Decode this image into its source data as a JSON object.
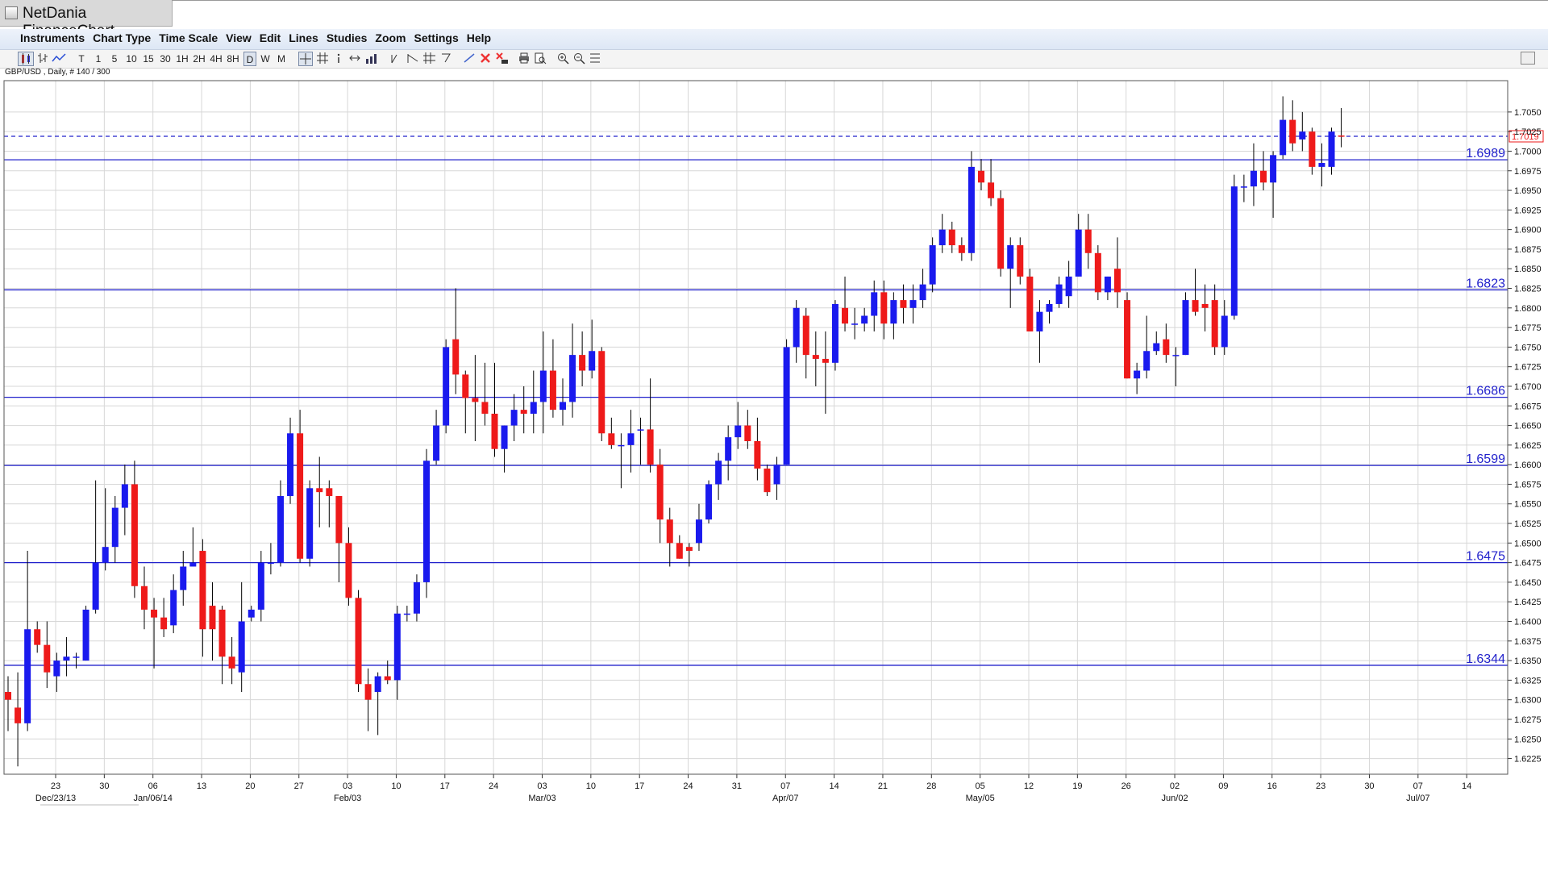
{
  "app": {
    "title": "NetDania FinanceChart"
  },
  "menu": [
    "Instruments",
    "Chart Type",
    "Time Scale",
    "View",
    "Edit",
    "Lines",
    "Studies",
    "Zoom",
    "Settings",
    "Help"
  ],
  "toolbar": {
    "timeframes": [
      "T",
      "1",
      "5",
      "10",
      "15",
      "30",
      "1H",
      "2H",
      "4H",
      "8H",
      "D",
      "W",
      "M"
    ],
    "selected_timeframe": "D"
  },
  "symbol_label": "GBP/USD , Daily, # 140 / 300",
  "colors": {
    "up": "#1a1aee",
    "down": "#ee1a1a",
    "wick": "#000000",
    "level_line": "#2222cc",
    "level_text": "#2222cc",
    "grid": "#d7d7d7",
    "last_price_line": "#2222cc",
    "last_price_box": "#ee1a1a"
  },
  "chart_data": {
    "type": "candlestick",
    "symbol": "GBP/USD",
    "interval": "Daily",
    "ylim": [
      1.6205,
      1.709
    ],
    "y_ticks": [
      1.6225,
      1.625,
      1.6275,
      1.63,
      1.6325,
      1.635,
      1.6375,
      1.64,
      1.6425,
      1.645,
      1.6475,
      1.65,
      1.6525,
      1.655,
      1.6575,
      1.66,
      1.6625,
      1.665,
      1.6675,
      1.67,
      1.6725,
      1.675,
      1.6775,
      1.68,
      1.6825,
      1.685,
      1.6875,
      1.69,
      1.6925,
      1.695,
      1.6975,
      1.7,
      1.7025,
      1.705
    ],
    "y_tick_labels": [
      "1.6225",
      "1.6250",
      "1.6275",
      "1.6300",
      "1.6325",
      "1.6350",
      "1.6375",
      "1.6400",
      "1.6425",
      "1.6450",
      "1.6475",
      "1.6500",
      "1.6525",
      "1.6550",
      "1.6575",
      "1.6600",
      "1.6625",
      "1.6650",
      "1.6675",
      "1.6700",
      "1.6725",
      "1.6750",
      "1.6775",
      "1.6800",
      "1.6825",
      "1.6850",
      "1.6875",
      "1.6900",
      "1.6925",
      "1.6950",
      "1.6975",
      "1.7000",
      "1.7025",
      "1.7050"
    ],
    "x_weeks": [
      {
        "label": "23",
        "month": "Dec/23/13"
      },
      {
        "label": "30",
        "month": ""
      },
      {
        "label": "06",
        "month": "Jan/06/14"
      },
      {
        "label": "13",
        "month": ""
      },
      {
        "label": "20",
        "month": ""
      },
      {
        "label": "27",
        "month": ""
      },
      {
        "label": "03",
        "month": "Feb/03"
      },
      {
        "label": "10",
        "month": ""
      },
      {
        "label": "17",
        "month": ""
      },
      {
        "label": "24",
        "month": ""
      },
      {
        "label": "03",
        "month": "Mar/03"
      },
      {
        "label": "10",
        "month": ""
      },
      {
        "label": "17",
        "month": ""
      },
      {
        "label": "24",
        "month": ""
      },
      {
        "label": "31",
        "month": ""
      },
      {
        "label": "07",
        "month": "Apr/07"
      },
      {
        "label": "14",
        "month": ""
      },
      {
        "label": "21",
        "month": ""
      },
      {
        "label": "28",
        "month": ""
      },
      {
        "label": "05",
        "month": "May/05"
      },
      {
        "label": "12",
        "month": ""
      },
      {
        "label": "19",
        "month": ""
      },
      {
        "label": "26",
        "month": ""
      },
      {
        "label": "02",
        "month": "Jun/02"
      },
      {
        "label": "09",
        "month": ""
      },
      {
        "label": "16",
        "month": ""
      },
      {
        "label": "23",
        "month": ""
      },
      {
        "label": "30",
        "month": ""
      },
      {
        "label": "07",
        "month": "Jul/07"
      },
      {
        "label": "14",
        "month": ""
      }
    ],
    "levels": [
      {
        "value": 1.6989,
        "label": "1.6989"
      },
      {
        "value": 1.6823,
        "label": "1.6823"
      },
      {
        "value": 1.6686,
        "label": "1.6686"
      },
      {
        "value": 1.6599,
        "label": "1.6599"
      },
      {
        "value": 1.6475,
        "label": "1.6475"
      },
      {
        "value": 1.6344,
        "label": "1.6344"
      }
    ],
    "last_price": {
      "value": 1.7019,
      "label": "1.7019"
    },
    "candles": [
      [
        1.631,
        1.633,
        1.626,
        1.63
      ],
      [
        1.629,
        1.6335,
        1.6215,
        1.627
      ],
      [
        1.627,
        1.649,
        1.626,
        1.639
      ],
      [
        1.639,
        1.64,
        1.636,
        1.637
      ],
      [
        1.637,
        1.64,
        1.6315,
        1.6335
      ],
      [
        1.633,
        1.636,
        1.631,
        1.635
      ],
      [
        1.635,
        1.638,
        1.633,
        1.6355
      ],
      [
        1.6355,
        1.636,
        1.634,
        1.6355
      ],
      [
        1.635,
        1.642,
        1.635,
        1.6415
      ],
      [
        1.6415,
        1.658,
        1.641,
        1.6475
      ],
      [
        1.6475,
        1.657,
        1.6465,
        1.6495
      ],
      [
        1.6495,
        1.656,
        1.6475,
        1.6545
      ],
      [
        1.6545,
        1.66,
        1.651,
        1.6575
      ],
      [
        1.6575,
        1.6605,
        1.643,
        1.6445
      ],
      [
        1.6445,
        1.647,
        1.639,
        1.6415
      ],
      [
        1.6415,
        1.643,
        1.634,
        1.6405
      ],
      [
        1.6405,
        1.643,
        1.638,
        1.639
      ],
      [
        1.6395,
        1.646,
        1.6385,
        1.644
      ],
      [
        1.644,
        1.649,
        1.642,
        1.647
      ],
      [
        1.647,
        1.652,
        1.647,
        1.6475
      ],
      [
        1.649,
        1.6505,
        1.6355,
        1.639
      ],
      [
        1.642,
        1.645,
        1.635,
        1.639
      ],
      [
        1.6415,
        1.642,
        1.632,
        1.6355
      ],
      [
        1.6355,
        1.638,
        1.632,
        1.634
      ],
      [
        1.6335,
        1.645,
        1.631,
        1.64
      ],
      [
        1.6405,
        1.642,
        1.64,
        1.6415
      ],
      [
        1.6415,
        1.649,
        1.64,
        1.6475
      ],
      [
        1.6475,
        1.65,
        1.646,
        1.6475
      ],
      [
        1.6475,
        1.658,
        1.647,
        1.656
      ],
      [
        1.656,
        1.666,
        1.655,
        1.664
      ],
      [
        1.664,
        1.667,
        1.6475,
        1.648
      ],
      [
        1.648,
        1.658,
        1.647,
        1.657
      ],
      [
        1.657,
        1.661,
        1.652,
        1.6565
      ],
      [
        1.657,
        1.658,
        1.652,
        1.656
      ],
      [
        1.656,
        1.656,
        1.645,
        1.65
      ],
      [
        1.65,
        1.652,
        1.642,
        1.643
      ],
      [
        1.643,
        1.644,
        1.631,
        1.632
      ],
      [
        1.632,
        1.634,
        1.626,
        1.63
      ],
      [
        1.631,
        1.6335,
        1.6255,
        1.633
      ],
      [
        1.633,
        1.635,
        1.632,
        1.6325
      ],
      [
        1.6325,
        1.642,
        1.63,
        1.641
      ],
      [
        1.641,
        1.642,
        1.64,
        1.641
      ],
      [
        1.641,
        1.646,
        1.64,
        1.645
      ],
      [
        1.645,
        1.662,
        1.643,
        1.6605
      ],
      [
        1.6605,
        1.667,
        1.66,
        1.665
      ],
      [
        1.665,
        1.676,
        1.664,
        1.675
      ],
      [
        1.676,
        1.6825,
        1.669,
        1.6715
      ],
      [
        1.6715,
        1.672,
        1.664,
        1.6685
      ],
      [
        1.6685,
        1.674,
        1.663,
        1.668
      ],
      [
        1.668,
        1.673,
        1.665,
        1.6665
      ],
      [
        1.6665,
        1.673,
        1.661,
        1.662
      ],
      [
        1.662,
        1.665,
        1.659,
        1.665
      ],
      [
        1.665,
        1.669,
        1.663,
        1.667
      ],
      [
        1.667,
        1.67,
        1.664,
        1.6665
      ],
      [
        1.6665,
        1.672,
        1.664,
        1.668
      ],
      [
        1.668,
        1.677,
        1.664,
        1.672
      ],
      [
        1.672,
        1.676,
        1.666,
        1.667
      ],
      [
        1.667,
        1.671,
        1.665,
        1.668
      ],
      [
        1.668,
        1.678,
        1.666,
        1.674
      ],
      [
        1.674,
        1.677,
        1.67,
        1.672
      ],
      [
        1.672,
        1.6785,
        1.671,
        1.6745
      ],
      [
        1.6745,
        1.675,
        1.663,
        1.664
      ],
      [
        1.664,
        1.666,
        1.662,
        1.6625
      ],
      [
        1.6625,
        1.664,
        1.657,
        1.6625
      ],
      [
        1.6625,
        1.667,
        1.659,
        1.664
      ],
      [
        1.6645,
        1.666,
        1.66,
        1.6645
      ],
      [
        1.6645,
        1.671,
        1.659,
        1.66
      ],
      [
        1.66,
        1.662,
        1.65,
        1.653
      ],
      [
        1.653,
        1.6545,
        1.647,
        1.65
      ],
      [
        1.65,
        1.651,
        1.648,
        1.648
      ],
      [
        1.6495,
        1.65,
        1.647,
        1.649
      ],
      [
        1.65,
        1.655,
        1.649,
        1.653
      ],
      [
        1.653,
        1.658,
        1.6525,
        1.6575
      ],
      [
        1.6575,
        1.6615,
        1.6555,
        1.6605
      ],
      [
        1.6605,
        1.665,
        1.658,
        1.6635
      ],
      [
        1.6635,
        1.668,
        1.662,
        1.665
      ],
      [
        1.665,
        1.667,
        1.662,
        1.663
      ],
      [
        1.663,
        1.666,
        1.658,
        1.6595
      ],
      [
        1.6595,
        1.66,
        1.656,
        1.6565
      ],
      [
        1.6575,
        1.661,
        1.6555,
        1.66
      ],
      [
        1.66,
        1.676,
        1.66,
        1.675
      ],
      [
        1.675,
        1.681,
        1.673,
        1.68
      ],
      [
        1.679,
        1.68,
        1.671,
        1.674
      ],
      [
        1.674,
        1.677,
        1.67,
        1.6735
      ],
      [
        1.6735,
        1.677,
        1.6665,
        1.673
      ],
      [
        1.673,
        1.681,
        1.672,
        1.6805
      ],
      [
        1.68,
        1.684,
        1.677,
        1.678
      ],
      [
        1.678,
        1.68,
        1.676,
        1.678
      ],
      [
        1.678,
        1.68,
        1.677,
        1.679
      ],
      [
        1.679,
        1.6835,
        1.677,
        1.682
      ],
      [
        1.682,
        1.6835,
        1.676,
        1.678
      ],
      [
        1.678,
        1.682,
        1.676,
        1.681
      ],
      [
        1.681,
        1.683,
        1.678,
        1.68
      ],
      [
        1.68,
        1.683,
        1.678,
        1.681
      ],
      [
        1.681,
        1.685,
        1.68,
        1.683
      ],
      [
        1.683,
        1.689,
        1.682,
        1.688
      ],
      [
        1.688,
        1.692,
        1.687,
        1.69
      ],
      [
        1.69,
        1.691,
        1.687,
        1.688
      ],
      [
        1.688,
        1.689,
        1.686,
        1.687
      ],
      [
        1.687,
        1.7,
        1.686,
        1.698
      ],
      [
        1.6975,
        1.699,
        1.695,
        1.696
      ],
      [
        1.696,
        1.699,
        1.693,
        1.694
      ],
      [
        1.694,
        1.695,
        1.684,
        1.685
      ],
      [
        1.685,
        1.689,
        1.68,
        1.688
      ],
      [
        1.688,
        1.689,
        1.683,
        1.684
      ],
      [
        1.684,
        1.685,
        1.677,
        1.677
      ],
      [
        1.677,
        1.681,
        1.673,
        1.6795
      ],
      [
        1.6795,
        1.681,
        1.678,
        1.6805
      ],
      [
        1.6805,
        1.684,
        1.68,
        1.683
      ],
      [
        1.6815,
        1.686,
        1.68,
        1.684
      ],
      [
        1.684,
        1.692,
        1.684,
        1.69
      ],
      [
        1.69,
        1.692,
        1.685,
        1.687
      ],
      [
        1.687,
        1.688,
        1.681,
        1.682
      ],
      [
        1.682,
        1.684,
        1.681,
        1.684
      ],
      [
        1.685,
        1.689,
        1.68,
        1.682
      ],
      [
        1.681,
        1.682,
        1.671,
        1.671
      ],
      [
        1.671,
        1.673,
        1.669,
        1.672
      ],
      [
        1.672,
        1.679,
        1.671,
        1.6745
      ],
      [
        1.6745,
        1.677,
        1.674,
        1.6755
      ],
      [
        1.676,
        1.678,
        1.673,
        1.674
      ],
      [
        1.674,
        1.675,
        1.67,
        1.674
      ],
      [
        1.674,
        1.682,
        1.674,
        1.681
      ],
      [
        1.681,
        1.685,
        1.679,
        1.6795
      ],
      [
        1.6805,
        1.683,
        1.677,
        1.68
      ],
      [
        1.681,
        1.683,
        1.674,
        1.675
      ],
      [
        1.675,
        1.681,
        1.674,
        1.679
      ],
      [
        1.679,
        1.697,
        1.6785,
        1.6955
      ],
      [
        1.6955,
        1.697,
        1.6935,
        1.6955
      ],
      [
        1.6955,
        1.701,
        1.693,
        1.6975
      ],
      [
        1.6975,
        1.7,
        1.695,
        1.696
      ],
      [
        1.696,
        1.7,
        1.6915,
        1.6995
      ],
      [
        1.6995,
        1.707,
        1.699,
        1.704
      ],
      [
        1.704,
        1.7065,
        1.7,
        1.701
      ],
      [
        1.7015,
        1.705,
        1.7,
        1.7025
      ],
      [
        1.7025,
        1.703,
        1.697,
        1.698
      ],
      [
        1.698,
        1.701,
        1.6955,
        1.6985
      ],
      [
        1.698,
        1.703,
        1.697,
        1.7025
      ],
      [
        1.702,
        1.7055,
        1.7005,
        1.7019
      ]
    ]
  }
}
